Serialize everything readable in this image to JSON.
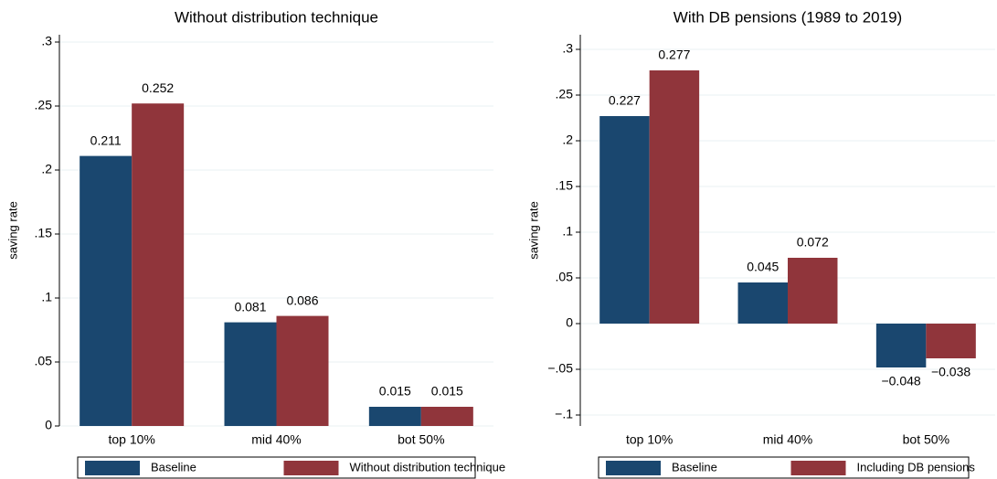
{
  "chart_data": [
    {
      "type": "bar",
      "title": "Without distribution technique",
      "y_label": "saving rate",
      "categories": [
        "top 10%",
        "mid 40%",
        "bot 50%"
      ],
      "series": [
        {
          "name": "Baseline",
          "color": "#1a476f",
          "values": [
            0.211,
            0.081,
            0.015
          ]
        },
        {
          "name": "Without distribution technique",
          "color": "#90353b",
          "values": [
            0.252,
            0.086,
            0.015
          ]
        }
      ],
      "ylim": [
        0,
        0.3
      ],
      "yticks": [
        0,
        {
          "value": 0.05,
          "label": ".05"
        },
        {
          "value": 0.1,
          "label": ".1"
        },
        {
          "value": 0.15,
          "label": ".15"
        },
        {
          "value": 0.2,
          "label": ".2"
        },
        {
          "value": 0.25,
          "label": ".25"
        },
        {
          "value": 0.3,
          "label": ".3"
        }
      ],
      "grid": true
    },
    {
      "type": "bar",
      "title": "With DB pensions (1989 to 2019)",
      "y_label": "saving rate",
      "categories": [
        "top 10%",
        "mid 40%",
        "bot 50%"
      ],
      "series": [
        {
          "name": "Baseline",
          "color": "#1a476f",
          "values": [
            0.227,
            0.045,
            -0.048
          ],
          "value_labels": [
            "0.227",
            "0.045",
            "−0.048"
          ]
        },
        {
          "name": "Including DB pensions",
          "color": "#90353b",
          "values": [
            0.277,
            0.072,
            -0.038
          ],
          "value_labels": [
            "0.277",
            "0.072",
            "−0.038"
          ]
        }
      ],
      "ylim": [
        -0.1,
        0.3
      ],
      "yticks": [
        {
          "value": -0.1,
          "label": "−.1"
        },
        {
          "value": -0.05,
          "label": "−.05"
        },
        0,
        {
          "value": 0.05,
          "label": ".05"
        },
        {
          "value": 0.1,
          "label": ".1"
        },
        {
          "value": 0.15,
          "label": ".15"
        },
        {
          "value": 0.2,
          "label": ".2"
        },
        {
          "value": 0.25,
          "label": ".25"
        },
        {
          "value": 0.3,
          "label": ".3"
        }
      ],
      "grid": true
    }
  ]
}
